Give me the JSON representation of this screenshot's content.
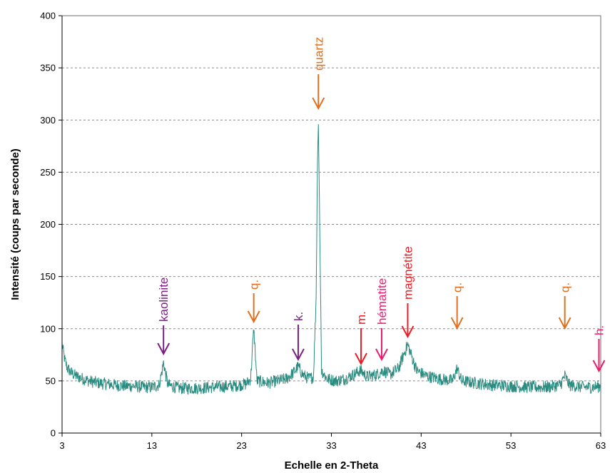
{
  "chart_data": {
    "type": "line",
    "title": "",
    "xlabel": "Echelle en 2-Theta",
    "ylabel": "Intensité (coups par seconde)",
    "xlim": [
      3,
      63
    ],
    "ylim": [
      0,
      400
    ],
    "x_ticks": [
      "3",
      "13",
      "23",
      "33",
      "43",
      "53",
      "63"
    ],
    "y_ticks": [
      "0",
      "50",
      "100",
      "150",
      "200",
      "250",
      "300",
      "350",
      "400"
    ],
    "grid": "horizontal dashed",
    "series_color": "#2a8c80",
    "series": [
      {
        "name": "",
        "points": [
          [
            3.0,
            85
          ],
          [
            3.3,
            70
          ],
          [
            3.6,
            62
          ],
          [
            4.0,
            58
          ],
          [
            4.5,
            55
          ],
          [
            5.0,
            53
          ],
          [
            6.0,
            50
          ],
          [
            7.0,
            48
          ],
          [
            8.0,
            47
          ],
          [
            9.0,
            46
          ],
          [
            10.0,
            45
          ],
          [
            11.0,
            45
          ],
          [
            12.0,
            44
          ],
          [
            13.0,
            44
          ],
          [
            13.8,
            46
          ],
          [
            14.1,
            58
          ],
          [
            14.3,
            68
          ],
          [
            14.5,
            58
          ],
          [
            14.8,
            46
          ],
          [
            16.0,
            43
          ],
          [
            18.0,
            43
          ],
          [
            20.0,
            44
          ],
          [
            22.0,
            45
          ],
          [
            23.5,
            47
          ],
          [
            24.0,
            52
          ],
          [
            24.2,
            80
          ],
          [
            24.35,
            100
          ],
          [
            24.5,
            80
          ],
          [
            24.7,
            50
          ],
          [
            26.0,
            48
          ],
          [
            27.0,
            50
          ],
          [
            28.0,
            52
          ],
          [
            28.8,
            58
          ],
          [
            29.3,
            64
          ],
          [
            29.8,
            56
          ],
          [
            30.5,
            52
          ],
          [
            31.0,
            54
          ],
          [
            31.3,
            130
          ],
          [
            31.45,
            260
          ],
          [
            31.55,
            296
          ],
          [
            31.7,
            200
          ],
          [
            31.9,
            60
          ],
          [
            32.5,
            52
          ],
          [
            33.5,
            50
          ],
          [
            34.5,
            52
          ],
          [
            35.5,
            56
          ],
          [
            36.2,
            60
          ],
          [
            37.0,
            54
          ],
          [
            38.0,
            56
          ],
          [
            38.8,
            60
          ],
          [
            39.5,
            56
          ],
          [
            40.5,
            62
          ],
          [
            41.0,
            74
          ],
          [
            41.5,
            85
          ],
          [
            42.0,
            72
          ],
          [
            42.5,
            60
          ],
          [
            43.5,
            55
          ],
          [
            45.0,
            52
          ],
          [
            46.5,
            50
          ],
          [
            47.0,
            62
          ],
          [
            47.5,
            50
          ],
          [
            49.0,
            48
          ],
          [
            51.0,
            46
          ],
          [
            53.0,
            45
          ],
          [
            55.0,
            44
          ],
          [
            57.0,
            44
          ],
          [
            58.5,
            46
          ],
          [
            59.0,
            55
          ],
          [
            59.5,
            46
          ],
          [
            61.0,
            44
          ],
          [
            62.0,
            44
          ],
          [
            63.0,
            45
          ]
        ]
      }
    ],
    "annotations": [
      {
        "label": "kaolinite",
        "x": 14.3,
        "color": "#7b1f82"
      },
      {
        "label": "q.",
        "x": 24.35,
        "color": "#e0701f"
      },
      {
        "label": "k.",
        "x": 29.3,
        "color": "#7b1f82"
      },
      {
        "label": "quartz",
        "x": 31.55,
        "color": "#e0701f"
      },
      {
        "label": "m.",
        "x": 36.3,
        "color": "#ee1c24"
      },
      {
        "label": "hématite",
        "x": 38.6,
        "color": "#ec1c6c"
      },
      {
        "label": "magnétite",
        "x": 41.5,
        "color": "#ee1c24"
      },
      {
        "label": "q.",
        "x": 47.0,
        "color": "#e0701f"
      },
      {
        "label": "q.",
        "x": 59.0,
        "color": "#e0701f"
      },
      {
        "label": "h.",
        "x": 62.8,
        "color": "#ec1c6c"
      }
    ]
  }
}
